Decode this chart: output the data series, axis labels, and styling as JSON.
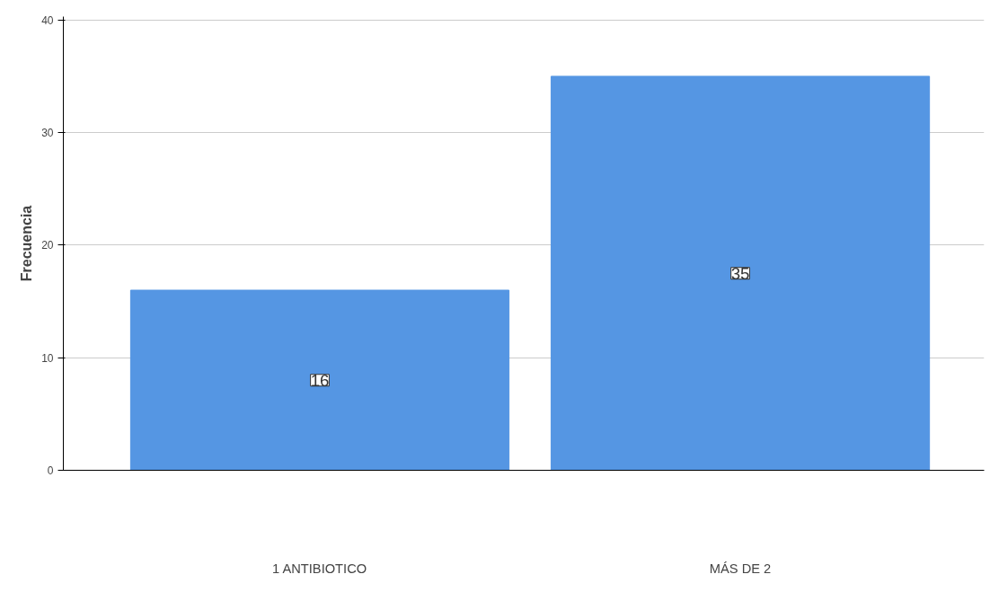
{
  "chart_data": {
    "type": "bar",
    "ylabel": "Frecuencia",
    "categories": [
      "1 ANTIBIOTICO",
      "MÁS DE 2"
    ],
    "values": [
      16,
      35
    ],
    "color": "#5596e3",
    "ylim": [
      0,
      40.3
    ],
    "yticks": [
      0,
      10,
      20,
      30,
      40
    ],
    "grid": "y",
    "data_labels": true
  }
}
